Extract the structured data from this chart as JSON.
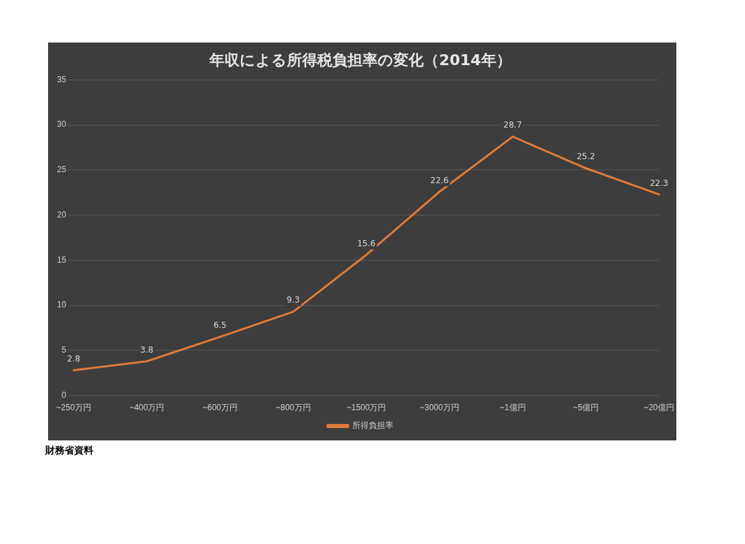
{
  "chart_data": {
    "type": "line",
    "title": "年収による所得税負担率の変化（2014年）",
    "categories": [
      "~250万円",
      "~400万円",
      "~600万円",
      "~800万円",
      "~1500万円",
      "~3000万円",
      "~1億円",
      "~5億円",
      "~20億円"
    ],
    "series": [
      {
        "name": "所得負担率",
        "color": "#e07b39",
        "values": [
          2.8,
          3.8,
          6.5,
          9.3,
          15.6,
          22.6,
          28.7,
          25.2,
          22.3
        ]
      }
    ],
    "ylim": [
      0,
      35
    ],
    "yticks": [
      0,
      5,
      10,
      15,
      20,
      25,
      30,
      35
    ],
    "grid": "y",
    "legend": "bottom",
    "marker": "none",
    "line_style": "solid",
    "data_labels": true,
    "annotations": [
      "財務省資料"
    ]
  }
}
